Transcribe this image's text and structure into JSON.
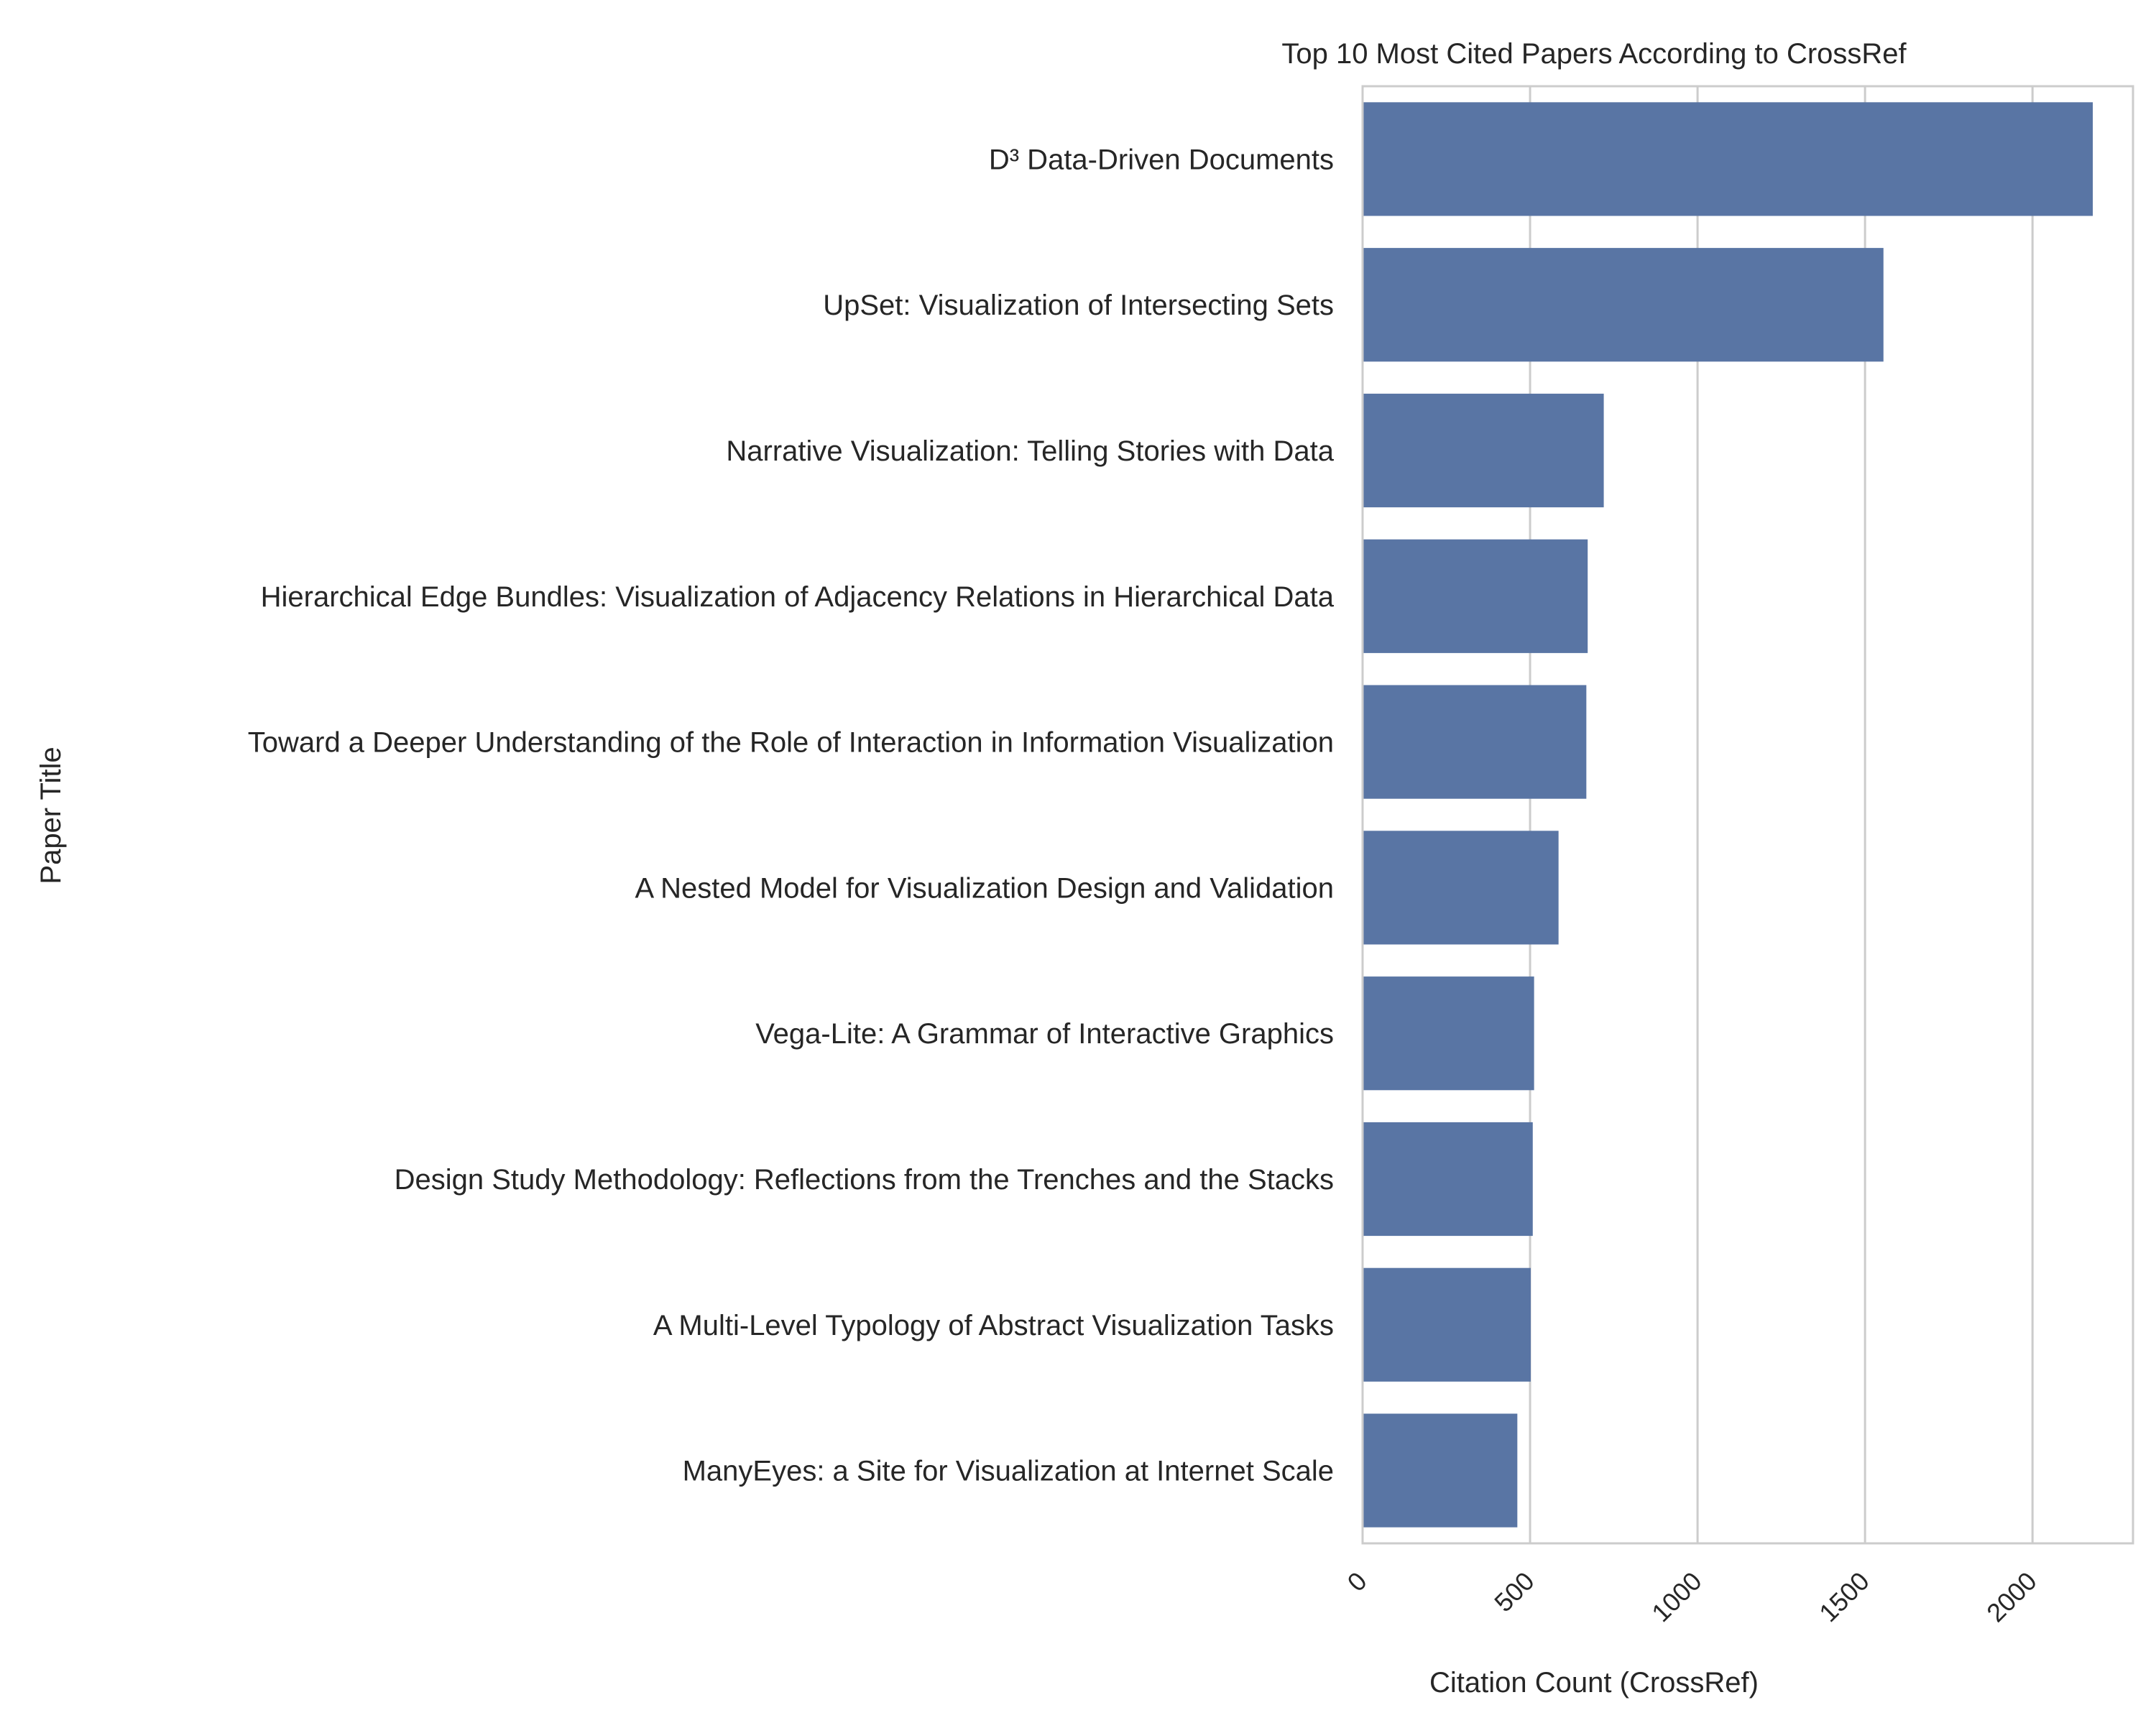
{
  "chart_data": {
    "type": "bar",
    "orientation": "horizontal",
    "title": "Top 10 Most Cited Papers According to CrossRef",
    "xlabel": "Citation Count (CrossRef)",
    "ylabel": "Paper Title",
    "xlim": [
      0,
      2300
    ],
    "xticks": [
      0,
      500,
      1000,
      1500,
      2000
    ],
    "grid": true,
    "bar_color": "#5975a4",
    "categories": [
      "D³ Data-Driven Documents",
      "UpSet: Visualization of Intersecting Sets",
      "Narrative Visualization: Telling Stories with Data",
      "Hierarchical Edge Bundles: Visualization of Adjacency Relations in Hierarchical Data",
      "Toward a Deeper Understanding of the Role of Interaction in Information Visualization",
      "A Nested Model for Visualization Design and Validation",
      "Vega-Lite: A Grammar of Interactive Graphics",
      "Design Study Methodology: Reflections from the Trenches and the Stacks",
      "A Multi-Level Typology of Abstract Visualization Tasks",
      "ManyEyes: a Site for Visualization at Internet Scale"
    ],
    "values": [
      2180,
      1555,
      720,
      672,
      668,
      585,
      512,
      508,
      502,
      462
    ]
  }
}
